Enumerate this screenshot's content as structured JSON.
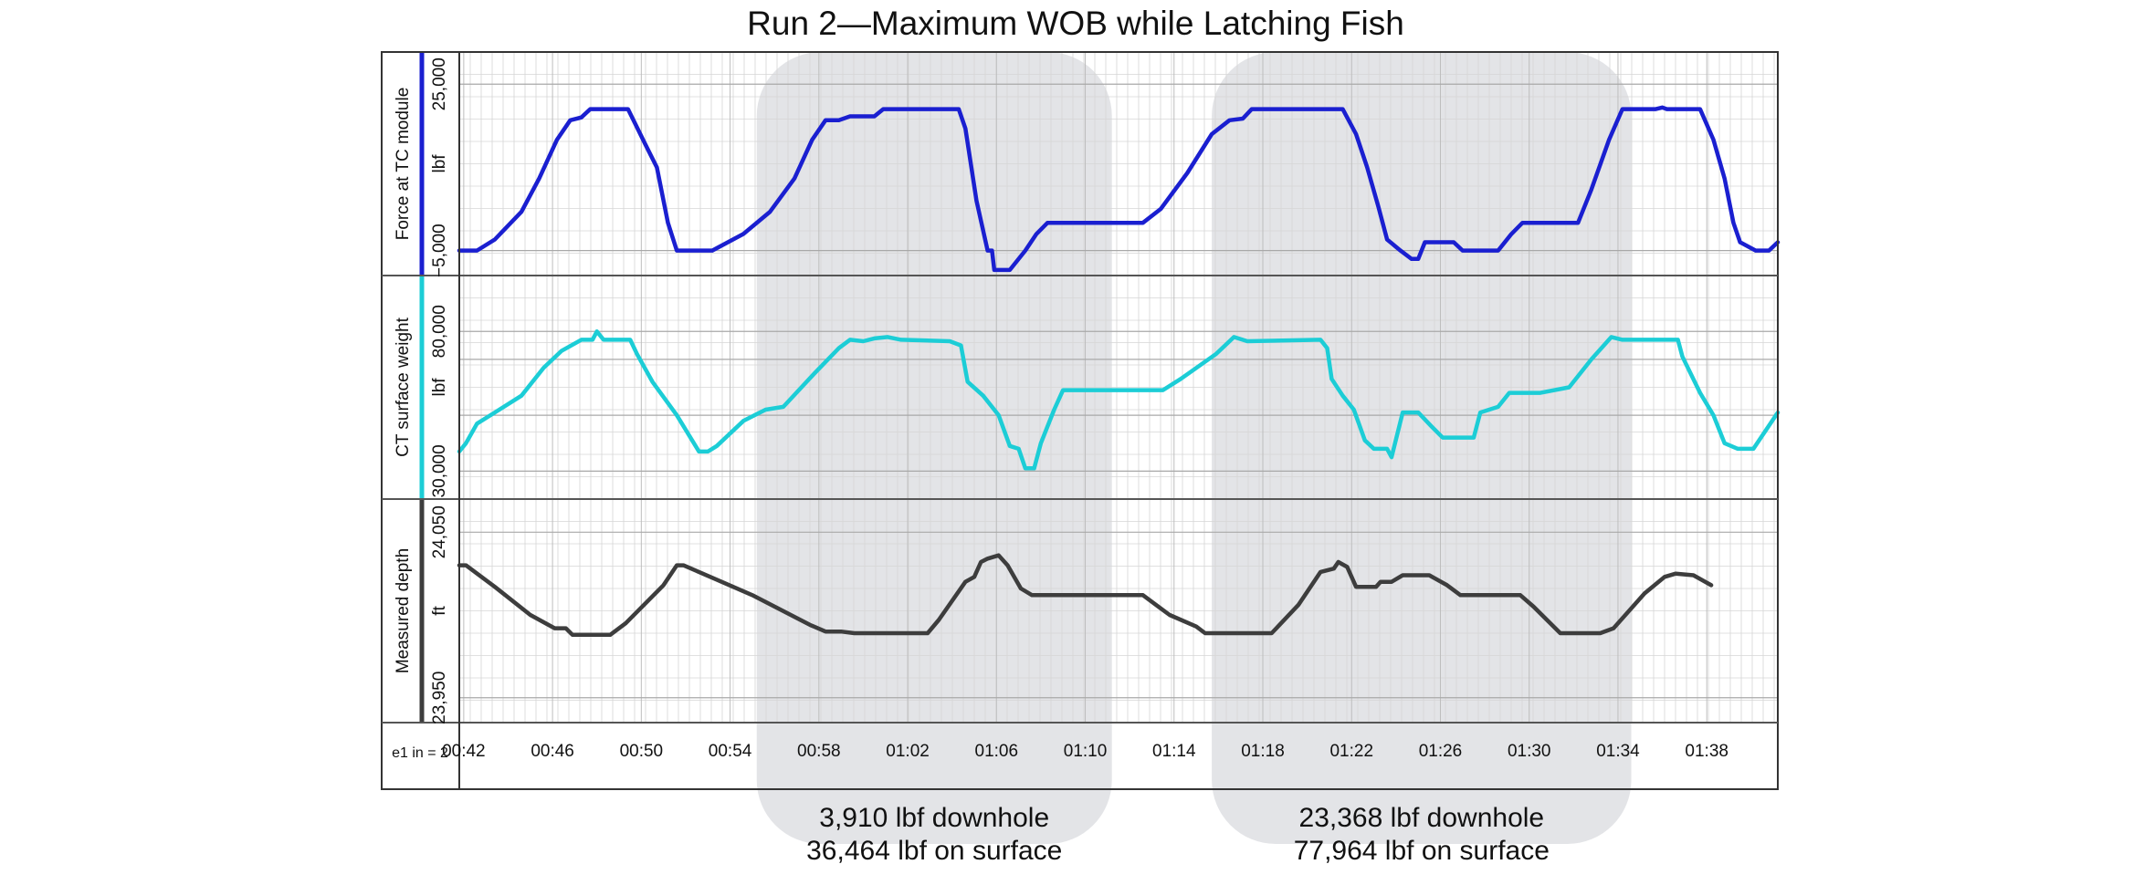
{
  "chart_data": {
    "type": "line",
    "title": "Run 2—Maximum WOB while Latching Fish",
    "time_axis": {
      "label": "e1 in = 2",
      "ticks": [
        "00:42",
        "00:46",
        "00:50",
        "00:54",
        "00:58",
        "01:02",
        "01:06",
        "01:10",
        "01:14",
        "01:18",
        "01:22",
        "01:26",
        "01:30",
        "01:34",
        "01:38"
      ],
      "tick_minutes": [
        42,
        46,
        50,
        54,
        58,
        62,
        66,
        70,
        74,
        78,
        82,
        86,
        90,
        94,
        98
      ],
      "range_minutes": [
        41.8,
        101.2
      ]
    },
    "tracks": [
      {
        "name": "Force at TC module",
        "unit": "lbf",
        "color": "#1a1fd0",
        "ticks": [
          25000,
          -5000
        ],
        "tick_labels": [
          "25,000",
          "−5,000"
        ],
        "range": [
          -9500,
          30800
        ],
        "points": [
          [
            41.8,
            -5000
          ],
          [
            42.6,
            -5000
          ],
          [
            43.4,
            -3000
          ],
          [
            44.6,
            2000
          ],
          [
            45.4,
            8000
          ],
          [
            46.2,
            15000
          ],
          [
            46.8,
            18500
          ],
          [
            47.3,
            19000
          ],
          [
            47.7,
            20500
          ],
          [
            49.4,
            20500
          ],
          [
            50.2,
            14000
          ],
          [
            50.7,
            10000
          ],
          [
            51.2,
            0
          ],
          [
            51.6,
            -5000
          ],
          [
            53.2,
            -5000
          ],
          [
            54.6,
            -2000
          ],
          [
            55.8,
            2000
          ],
          [
            56.9,
            8000
          ],
          [
            57.7,
            15000
          ],
          [
            58.3,
            18500
          ],
          [
            58.9,
            18500
          ],
          [
            59.4,
            19200
          ],
          [
            60.5,
            19200
          ],
          [
            60.9,
            20500
          ],
          [
            64.3,
            20500
          ],
          [
            64.6,
            17000
          ],
          [
            65.1,
            4000
          ],
          [
            65.6,
            -5000
          ],
          [
            65.8,
            -5000
          ],
          [
            65.9,
            -8500
          ],
          [
            66.6,
            -8500
          ],
          [
            67.3,
            -5000
          ],
          [
            67.8,
            -2000
          ],
          [
            68.3,
            0
          ],
          [
            72.6,
            0
          ],
          [
            73.4,
            2500
          ],
          [
            74.6,
            9000
          ],
          [
            75.7,
            16000
          ],
          [
            76.5,
            18500
          ],
          [
            77.1,
            18800
          ],
          [
            77.5,
            20500
          ],
          [
            81.6,
            20500
          ],
          [
            82.2,
            16000
          ],
          [
            82.7,
            10000
          ],
          [
            83.2,
            3000
          ],
          [
            83.6,
            -3000
          ],
          [
            84.2,
            -5000
          ],
          [
            84.7,
            -6500
          ],
          [
            85.0,
            -6500
          ],
          [
            85.3,
            -3500
          ],
          [
            86.6,
            -3500
          ],
          [
            87.0,
            -5000
          ],
          [
            88.6,
            -5000
          ],
          [
            89.2,
            -2000
          ],
          [
            89.7,
            0.5
          ],
          [
            92.2,
            0.5
          ],
          [
            92.8,
            6000
          ],
          [
            93.6,
            15000
          ],
          [
            94.2,
            20500
          ],
          [
            95.7,
            20500
          ],
          [
            96.0,
            20800
          ],
          [
            96.2,
            20500
          ],
          [
            97.7,
            20500
          ],
          [
            98.3,
            15000
          ],
          [
            98.8,
            8000
          ],
          [
            99.2,
            0
          ],
          [
            99.5,
            -3500
          ],
          [
            100.2,
            -5000
          ],
          [
            100.8,
            -5000
          ],
          [
            101.2,
            -3500
          ]
        ]
      },
      {
        "name": "CT surface weight",
        "unit": "lbf",
        "color": "#1ccdd6",
        "ticks": [
          80000,
          30000
        ],
        "tick_labels": [
          "80,000",
          "30,000"
        ],
        "range": [
          20000,
          100000
        ],
        "points": [
          [
            41.8,
            37000
          ],
          [
            42.1,
            40000
          ],
          [
            42.6,
            47000
          ],
          [
            43.4,
            51000
          ],
          [
            44.6,
            57000
          ],
          [
            45.6,
            67000
          ],
          [
            46.4,
            73000
          ],
          [
            47.3,
            77000
          ],
          [
            47.8,
            77000
          ],
          [
            48.0,
            80000
          ],
          [
            48.3,
            77000
          ],
          [
            49.5,
            77000
          ],
          [
            49.8,
            72000
          ],
          [
            50.5,
            62000
          ],
          [
            51.6,
            50000
          ],
          [
            52.6,
            37000
          ],
          [
            53.0,
            37000
          ],
          [
            53.4,
            39000
          ],
          [
            54.6,
            48000
          ],
          [
            55.6,
            52000
          ],
          [
            56.4,
            53000
          ],
          [
            57.8,
            65000
          ],
          [
            58.9,
            74000
          ],
          [
            59.4,
            77000
          ],
          [
            60.0,
            76500
          ],
          [
            60.5,
            77500
          ],
          [
            61.1,
            78000
          ],
          [
            61.7,
            77000
          ],
          [
            63.9,
            76500
          ],
          [
            64.4,
            75000
          ],
          [
            64.7,
            62000
          ],
          [
            65.4,
            57000
          ],
          [
            66.1,
            50000
          ],
          [
            66.6,
            39000
          ],
          [
            67.0,
            38000
          ],
          [
            67.3,
            31000
          ],
          [
            67.7,
            31000
          ],
          [
            68.0,
            40000
          ],
          [
            68.6,
            52000
          ],
          [
            69.0,
            59000
          ],
          [
            73.5,
            59000
          ],
          [
            74.3,
            63000
          ],
          [
            75.9,
            72000
          ],
          [
            76.7,
            78000
          ],
          [
            77.3,
            76500
          ],
          [
            80.6,
            77000
          ],
          [
            80.9,
            74000
          ],
          [
            81.1,
            63000
          ],
          [
            81.6,
            57000
          ],
          [
            82.1,
            52000
          ],
          [
            82.6,
            41000
          ],
          [
            83.0,
            38000
          ],
          [
            83.6,
            38000
          ],
          [
            83.8,
            35000
          ],
          [
            84.3,
            51000
          ],
          [
            85.0,
            51000
          ],
          [
            85.6,
            46000
          ],
          [
            86.1,
            42000
          ],
          [
            87.5,
            42000
          ],
          [
            87.8,
            51000
          ],
          [
            88.6,
            53000
          ],
          [
            89.1,
            58000
          ],
          [
            90.5,
            58000
          ],
          [
            91.8,
            60000
          ],
          [
            92.8,
            70000
          ],
          [
            93.7,
            78000
          ],
          [
            94.2,
            77000
          ],
          [
            96.7,
            77000
          ],
          [
            96.9,
            71000
          ],
          [
            97.7,
            58000
          ],
          [
            98.3,
            50000
          ],
          [
            98.8,
            40000
          ],
          [
            99.4,
            38000
          ],
          [
            100.1,
            38000
          ],
          [
            101.2,
            51000
          ]
        ]
      },
      {
        "name": "Measured depth",
        "unit": "ft",
        "color": "#3d3d3d",
        "ticks": [
          24050,
          23950
        ],
        "tick_labels": [
          "24,050",
          "23,950"
        ],
        "range": [
          23935,
          24070
        ],
        "points": [
          [
            41.8,
            24030
          ],
          [
            42.1,
            24030
          ],
          [
            43.4,
            24017
          ],
          [
            45.0,
            24000
          ],
          [
            46.1,
            23992
          ],
          [
            46.6,
            23992
          ],
          [
            46.9,
            23988
          ],
          [
            48.6,
            23988
          ],
          [
            49.3,
            23995
          ],
          [
            51.0,
            24018
          ],
          [
            51.6,
            24030
          ],
          [
            51.9,
            24030
          ],
          [
            52.6,
            24026
          ],
          [
            55.0,
            24012
          ],
          [
            57.6,
            23994
          ],
          [
            58.3,
            23990
          ],
          [
            59.0,
            23990
          ],
          [
            59.6,
            23989
          ],
          [
            62.9,
            23989
          ],
          [
            63.4,
            23997
          ],
          [
            64.6,
            24020
          ],
          [
            65.0,
            24023
          ],
          [
            65.3,
            24032
          ],
          [
            65.6,
            24034
          ],
          [
            66.1,
            24036
          ],
          [
            66.5,
            24030
          ],
          [
            67.1,
            24016
          ],
          [
            67.6,
            24012
          ],
          [
            72.6,
            24012
          ],
          [
            73.8,
            24000
          ],
          [
            75.0,
            23993
          ],
          [
            75.4,
            23989
          ],
          [
            78.4,
            23989
          ],
          [
            79.6,
            24006
          ],
          [
            80.6,
            24026
          ],
          [
            81.2,
            24028
          ],
          [
            81.4,
            24032
          ],
          [
            81.8,
            24029
          ],
          [
            82.2,
            24017
          ],
          [
            83.1,
            24017
          ],
          [
            83.3,
            24020
          ],
          [
            83.8,
            24020
          ],
          [
            84.3,
            24024
          ],
          [
            85.5,
            24024
          ],
          [
            86.3,
            24018
          ],
          [
            86.9,
            24012
          ],
          [
            89.6,
            24012
          ],
          [
            90.2,
            24005
          ],
          [
            91.4,
            23989
          ],
          [
            93.2,
            23989
          ],
          [
            93.8,
            23992
          ],
          [
            95.2,
            24013
          ],
          [
            96.1,
            24023
          ],
          [
            96.6,
            24025
          ],
          [
            97.4,
            24024
          ],
          [
            98.2,
            24018
          ]
        ]
      }
    ],
    "highlights": [
      {
        "start_minutes": 55.2,
        "end_minutes": 71.2,
        "annotation": [
          "3,910 lbf downhole",
          "36,464 lbf on surface"
        ]
      },
      {
        "start_minutes": 75.7,
        "end_minutes": 94.6,
        "annotation": [
          "23,368 lbf downhole",
          "77,964 lbf on surface"
        ]
      }
    ],
    "grid": true
  }
}
